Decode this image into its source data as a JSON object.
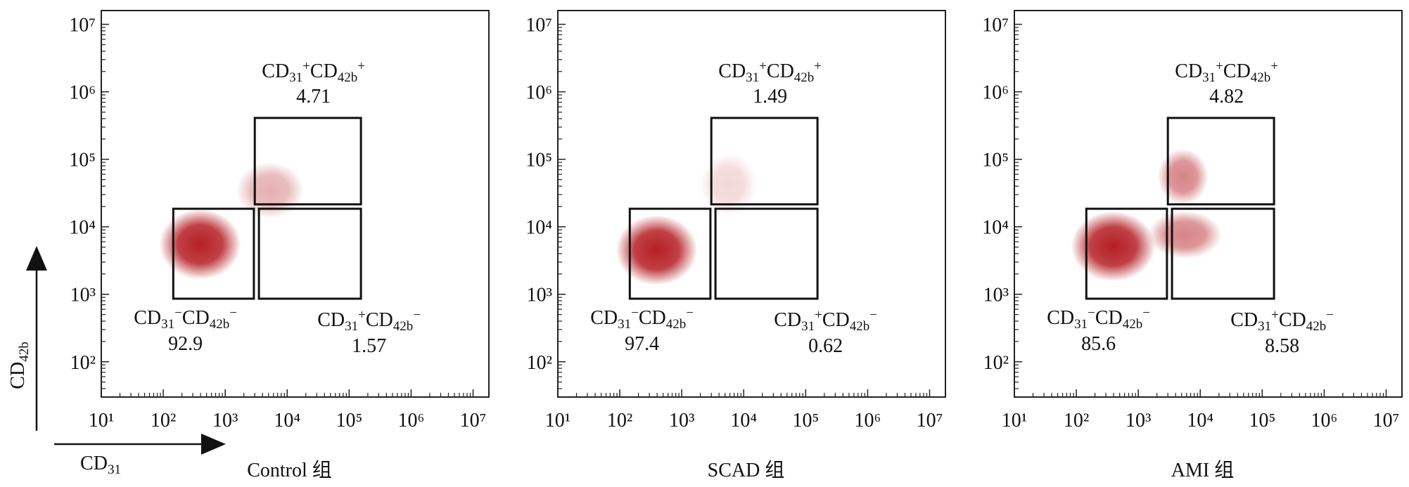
{
  "label_pattern": [
    "",
    "sub",
    "sup",
    "",
    "sub",
    "sup"
  ],
  "axis_labels": {
    "y": [
      "CD",
      "42b"
    ],
    "x": [
      "CD",
      "31"
    ],
    "pattern": [
      "",
      "sub"
    ]
  },
  "chart_data": [
    {
      "type": "scatter",
      "title": "Control 组",
      "xscale": "log",
      "yscale": "log",
      "color": "#b51f24",
      "xlim": [
        10,
        18000000
      ],
      "ylim": [
        30,
        16000000
      ],
      "xticks": [
        {
          "value": 10,
          "label": "10¹"
        },
        {
          "value": 100,
          "label": "10²"
        },
        {
          "value": 1000,
          "label": "10³"
        },
        {
          "value": 10000,
          "label": "10⁴"
        },
        {
          "value": 100000,
          "label": "10⁵"
        },
        {
          "value": 1000000,
          "label": "10⁶"
        },
        {
          "value": 10000000,
          "label": "10⁷"
        }
      ],
      "yticks": [
        {
          "value": 100,
          "label": "10²"
        },
        {
          "value": 1000,
          "label": "10³"
        },
        {
          "value": 10000,
          "label": "10⁴"
        },
        {
          "value": 100000,
          "label": "10⁵"
        },
        {
          "value": 1000000,
          "label": "10⁶"
        },
        {
          "value": 10000000,
          "label": "10⁷"
        }
      ],
      "gates": [
        {
          "label": [
            "CD",
            "31",
            "+",
            "CD",
            "42b",
            "+"
          ],
          "value": 4.71,
          "x": [
            3000,
            155000
          ],
          "y": [
            21500,
            410000
          ],
          "label_side": "above"
        },
        {
          "label": [
            "CD",
            "31",
            "−",
            "CD",
            "42b",
            "−"
          ],
          "value": 92.9,
          "x": [
            145,
            2900
          ],
          "y": [
            860,
            18500
          ],
          "label_side": "below-left"
        },
        {
          "label": [
            "CD",
            "31",
            "+",
            "CD",
            "42b",
            "−"
          ],
          "value": 1.57,
          "x": [
            3500,
            155000
          ],
          "y": [
            860,
            18500
          ],
          "label_side": "below-right"
        }
      ]
    },
    {
      "type": "scatter",
      "title": "SCAD 组",
      "xscale": "log",
      "yscale": "log",
      "color": "#b51f24",
      "xlim": [
        10,
        18000000
      ],
      "ylim": [
        30,
        16000000
      ],
      "xticks": [
        {
          "value": 10,
          "label": "10¹"
        },
        {
          "value": 100,
          "label": "10²"
        },
        {
          "value": 1000,
          "label": "10³"
        },
        {
          "value": 10000,
          "label": "10⁴"
        },
        {
          "value": 100000,
          "label": "10⁵"
        },
        {
          "value": 1000000,
          "label": "10⁶"
        },
        {
          "value": 10000000,
          "label": "10⁷"
        }
      ],
      "yticks": [
        {
          "value": 100,
          "label": "10²"
        },
        {
          "value": 1000,
          "label": "10³"
        },
        {
          "value": 10000,
          "label": "10⁴"
        },
        {
          "value": 100000,
          "label": "10⁵"
        },
        {
          "value": 1000000,
          "label": "10⁶"
        },
        {
          "value": 10000000,
          "label": "10⁷"
        }
      ],
      "gates": [
        {
          "label": [
            "CD",
            "31",
            "+",
            "CD",
            "42b",
            "+"
          ],
          "value": 1.49,
          "x": [
            3000,
            155000
          ],
          "y": [
            21500,
            410000
          ],
          "label_side": "above"
        },
        {
          "label": [
            "CD",
            "31",
            "−",
            "CD",
            "42b",
            "−"
          ],
          "value": 97.4,
          "x": [
            145,
            2900
          ],
          "y": [
            860,
            18500
          ],
          "label_side": "below-left"
        },
        {
          "label": [
            "CD",
            "31",
            "+",
            "CD",
            "42b",
            "−"
          ],
          "value": 0.62,
          "x": [
            3500,
            155000
          ],
          "y": [
            860,
            18500
          ],
          "label_side": "below-right"
        }
      ]
    },
    {
      "type": "scatter",
      "title": "AMI 组",
      "xscale": "log",
      "yscale": "log",
      "color": "#b51f24",
      "xlim": [
        10,
        18000000
      ],
      "ylim": [
        30,
        16000000
      ],
      "xticks": [
        {
          "value": 10,
          "label": "10¹"
        },
        {
          "value": 100,
          "label": "10²"
        },
        {
          "value": 1000,
          "label": "10³"
        },
        {
          "value": 10000,
          "label": "10⁴"
        },
        {
          "value": 100000,
          "label": "10⁵"
        },
        {
          "value": 1000000,
          "label": "10⁶"
        },
        {
          "value": 10000000,
          "label": "10⁷"
        }
      ],
      "yticks": [
        {
          "value": 100,
          "label": "10²"
        },
        {
          "value": 1000,
          "label": "10³"
        },
        {
          "value": 10000,
          "label": "10⁴"
        },
        {
          "value": 100000,
          "label": "10⁵"
        },
        {
          "value": 1000000,
          "label": "10⁶"
        },
        {
          "value": 10000000,
          "label": "10⁷"
        }
      ],
      "gates": [
        {
          "label": [
            "CD",
            "31",
            "+",
            "CD",
            "42b",
            "+"
          ],
          "value": 4.82,
          "x": [
            3000,
            155000
          ],
          "y": [
            21500,
            410000
          ],
          "label_side": "above"
        },
        {
          "label": [
            "CD",
            "31",
            "−",
            "CD",
            "42b",
            "−"
          ],
          "value": 85.6,
          "x": [
            145,
            2900
          ],
          "y": [
            860,
            18500
          ],
          "label_side": "below-left"
        },
        {
          "label": [
            "CD",
            "31",
            "+",
            "CD",
            "42b",
            "−"
          ],
          "value": 8.58,
          "x": [
            3500,
            155000
          ],
          "y": [
            860,
            18500
          ],
          "label_side": "below-right"
        }
      ]
    }
  ]
}
